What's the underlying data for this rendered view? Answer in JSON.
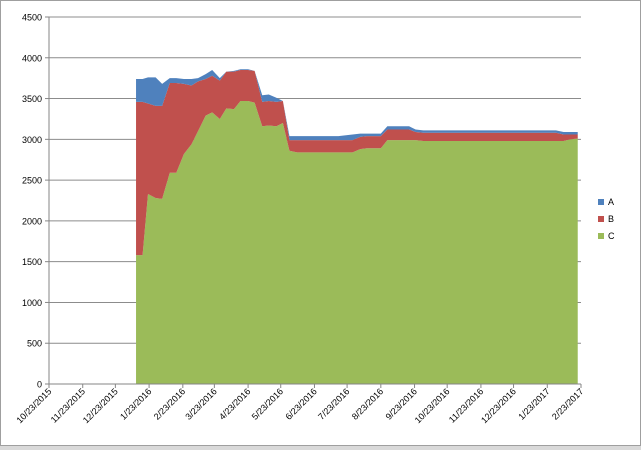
{
  "chart_data": {
    "type": "area",
    "stacked": true,
    "title": "",
    "xlabel": "",
    "ylabel": "",
    "ylim": [
      0,
      4500
    ],
    "yticks": [
      "0",
      "500",
      "1000",
      "1500",
      "2000",
      "2500",
      "3000",
      "3500",
      "4000",
      "4500"
    ],
    "xlim": [
      "2015-10-23",
      "2017-02-23"
    ],
    "xticks": [
      "10/23/2015",
      "11/23/2015",
      "12/23/2015",
      "1/23/2016",
      "2/23/2016",
      "3/23/2016",
      "4/23/2016",
      "5/23/2016",
      "6/23/2016",
      "7/23/2016",
      "8/23/2016",
      "9/23/2016",
      "10/23/2016",
      "11/23/2016",
      "12/23/2016",
      "1/23/2017",
      "2/23/2017"
    ],
    "grid": true,
    "legend_position": "right",
    "x": [
      "2016-01-11",
      "2016-01-17",
      "2016-01-22",
      "2016-01-29",
      "2016-02-04",
      "2016-02-11",
      "2016-02-17",
      "2016-02-24",
      "2016-03-02",
      "2016-03-08",
      "2016-03-15",
      "2016-03-21",
      "2016-03-28",
      "2016-04-03",
      "2016-04-10",
      "2016-04-16",
      "2016-04-23",
      "2016-04-29",
      "2016-05-06",
      "2016-05-12",
      "2016-05-19",
      "2016-05-25",
      "2016-05-31",
      "2016-06-07",
      "2016-06-13",
      "2016-06-20",
      "2016-06-26",
      "2016-07-02",
      "2016-07-09",
      "2016-07-15",
      "2016-07-22",
      "2016-07-28",
      "2016-08-04",
      "2016-08-10",
      "2016-08-17",
      "2016-08-23",
      "2016-08-29",
      "2016-09-05",
      "2016-09-11",
      "2016-09-18",
      "2016-09-24",
      "2016-10-01",
      "2016-10-07",
      "2016-10-14",
      "2016-10-20",
      "2016-10-26",
      "2016-11-02",
      "2016-11-08",
      "2016-11-15",
      "2016-11-21",
      "2016-11-28",
      "2016-12-04",
      "2016-12-11",
      "2016-12-17",
      "2016-12-23",
      "2016-12-30",
      "2017-01-05",
      "2017-01-12",
      "2017-01-18",
      "2017-01-25",
      "2017-01-31",
      "2017-02-07",
      "2017-02-13",
      "2017-02-20"
    ],
    "series": [
      {
        "name": "C",
        "color": "#9bbb59",
        "values": [
          1580,
          1580,
          2330,
          2280,
          2270,
          2590,
          2590,
          2820,
          2940,
          3100,
          3290,
          3330,
          3250,
          3380,
          3370,
          3470,
          3470,
          3450,
          3160,
          3170,
          3160,
          3200,
          2860,
          2840,
          2840,
          2840,
          2840,
          2840,
          2840,
          2840,
          2840,
          2840,
          2880,
          2890,
          2890,
          2890,
          2990,
          2990,
          2990,
          2990,
          2990,
          2980,
          2980,
          2980,
          2980,
          2980,
          2980,
          2980,
          2980,
          2980,
          2980,
          2980,
          2980,
          2980,
          2980,
          2980,
          2980,
          2980,
          2980,
          2980,
          2980,
          2980,
          3000,
          3010
        ]
      },
      {
        "name": "B",
        "color": "#c0504d",
        "values": [
          1880,
          1880,
          1110,
          1130,
          1140,
          1100,
          1100,
          860,
          720,
          610,
          450,
          450,
          470,
          450,
          460,
          380,
          380,
          390,
          300,
          300,
          300,
          270,
          130,
          150,
          150,
          150,
          150,
          150,
          150,
          150,
          150,
          150,
          150,
          150,
          150,
          150,
          130,
          130,
          130,
          130,
          100,
          100,
          100,
          100,
          100,
          100,
          100,
          100,
          100,
          100,
          100,
          100,
          100,
          100,
          100,
          100,
          100,
          100,
          100,
          100,
          100,
          80,
          60,
          50
        ]
      },
      {
        "name": "A",
        "color": "#4f81bd",
        "values": [
          280,
          280,
          320,
          350,
          270,
          60,
          60,
          60,
          80,
          40,
          60,
          70,
          30,
          0,
          10,
          10,
          10,
          0,
          80,
          80,
          50,
          0,
          50,
          50,
          50,
          50,
          50,
          50,
          50,
          50,
          60,
          70,
          40,
          30,
          30,
          30,
          40,
          40,
          40,
          40,
          30,
          30,
          30,
          30,
          30,
          30,
          30,
          30,
          30,
          30,
          30,
          30,
          30,
          30,
          30,
          30,
          30,
          30,
          30,
          30,
          30,
          30,
          30,
          30
        ]
      }
    ]
  }
}
